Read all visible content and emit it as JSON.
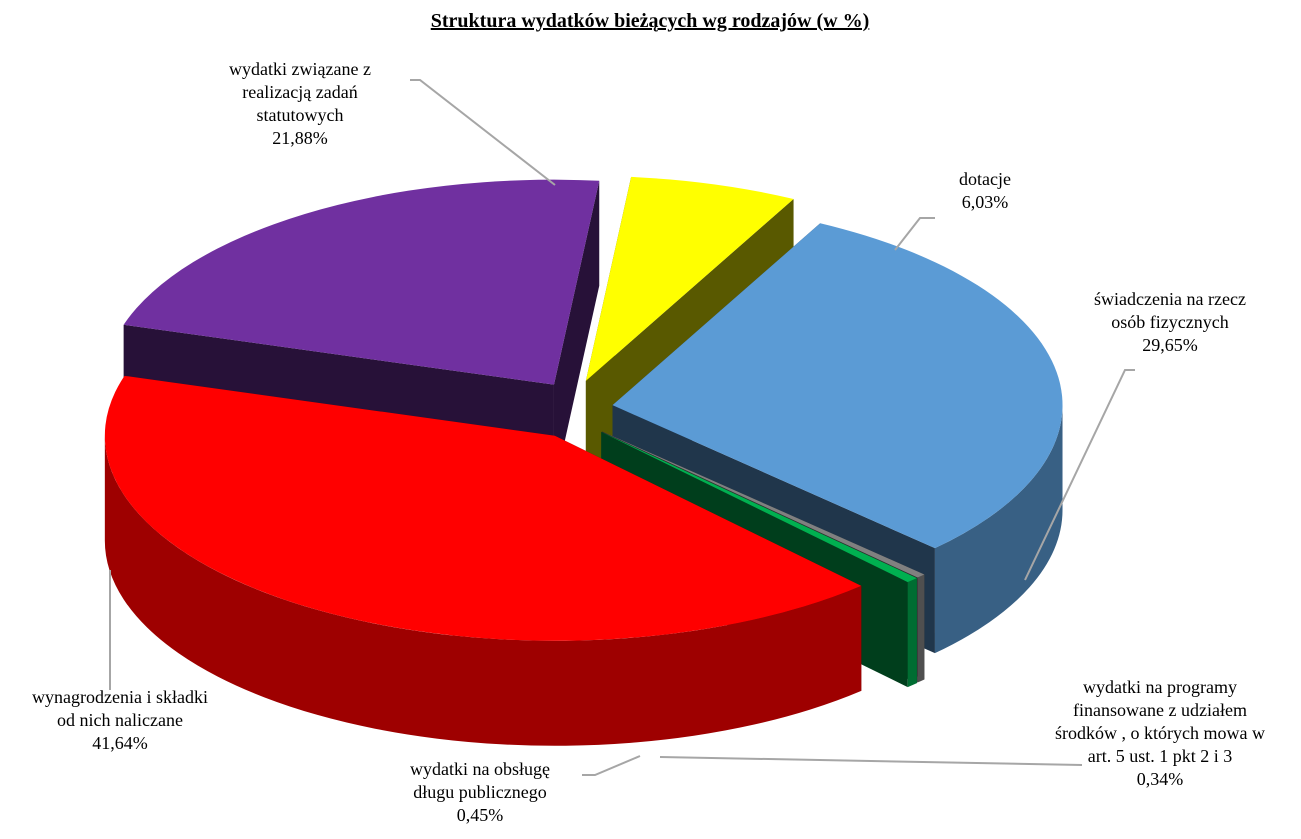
{
  "chart_data": {
    "type": "pie3d",
    "title": "Struktura  wydatków bieżących wg rodzajów (w %)",
    "categories": [
      "wydatki związane z realizacją zadań statutowych",
      "dotacje",
      "świadczenia na rzecz osób fizycznych",
      "wydatki na programy finansowane z udziałem środków , o których mowa w art. 5 ust. 1 pkt 2 i 3",
      "wydatki na obsługę długu publicznego",
      "wynagrodzenia i składki od nich naliczane"
    ],
    "values": [
      21.88,
      6.03,
      29.65,
      0.34,
      0.45,
      41.64
    ],
    "value_labels": [
      "21,88%",
      "6,03%",
      "29,65%",
      "0,34%",
      "0,45%",
      "41,64%"
    ],
    "colors": [
      "#7030a0",
      "#ffff00",
      "#5b9bd5",
      "#808080",
      "#00b050",
      "#ff0000"
    ]
  }
}
